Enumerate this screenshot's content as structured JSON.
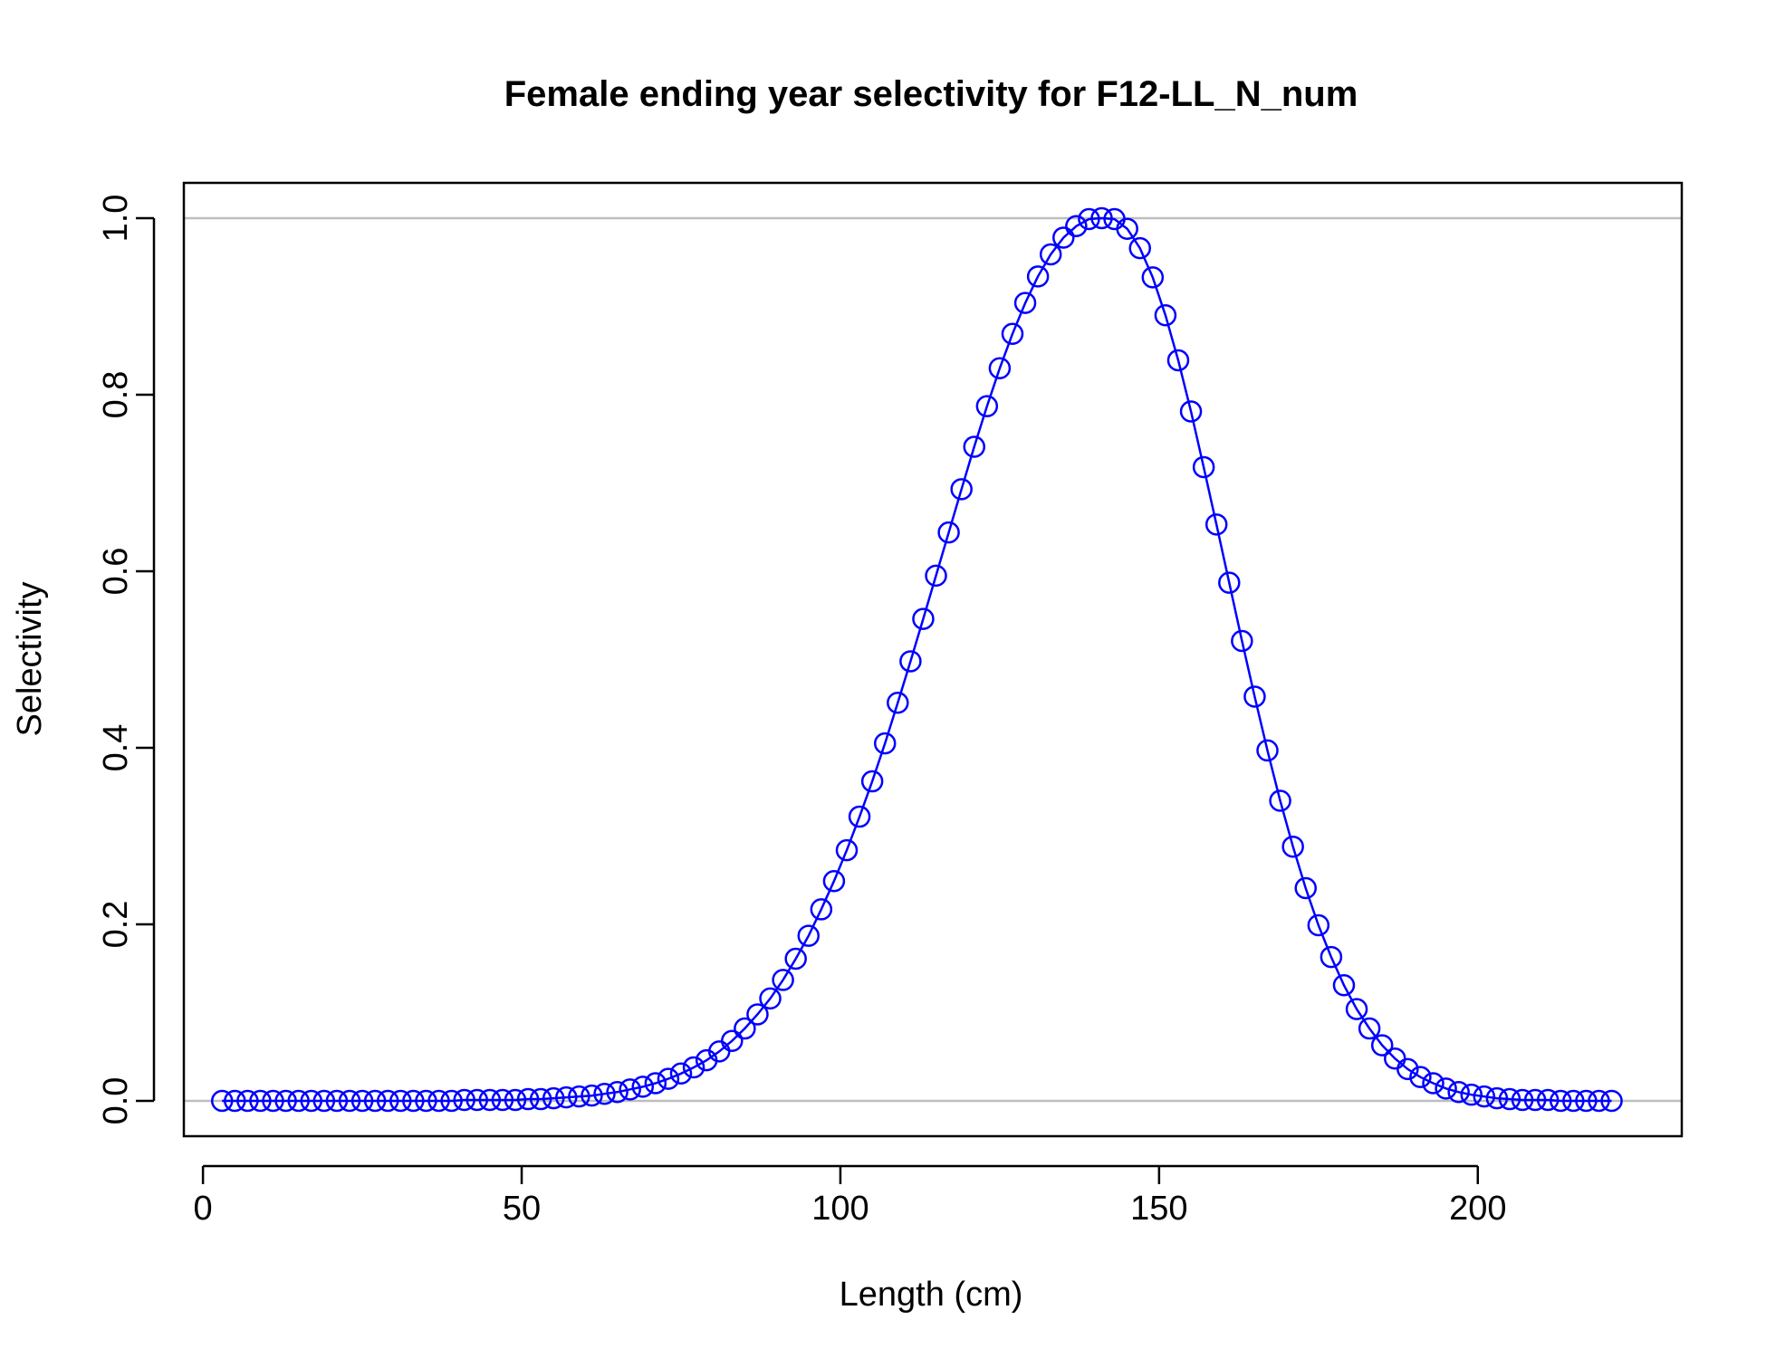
{
  "chart_data": {
    "type": "line",
    "title": "Female ending year selectivity for F12-LL_N_num",
    "xlabel": "Length (cm)",
    "ylabel": "Selectivity",
    "xlim": [
      -3,
      232
    ],
    "ylim": [
      -0.04,
      1.04
    ],
    "x_ticks": [
      0,
      50,
      100,
      150,
      200
    ],
    "y_ticks": [
      0.0,
      0.2,
      0.4,
      0.6,
      0.8,
      1.0
    ],
    "x_tick_labels": [
      "0",
      "50",
      "100",
      "150",
      "200"
    ],
    "y_tick_labels": [
      "0.0",
      "0.2",
      "0.4",
      "0.6",
      "0.8",
      "1.0"
    ],
    "reference_lines_y": [
      0,
      1
    ],
    "colors": {
      "series": "#0000ff",
      "reference": "#bebebe",
      "axis": "#000000"
    },
    "series": [
      {
        "marker": "open-circle",
        "x": [
          3,
          5,
          7,
          9,
          11,
          13,
          15,
          17,
          19,
          21,
          23,
          25,
          27,
          29,
          31,
          33,
          35,
          37,
          39,
          41,
          43,
          45,
          47,
          49,
          51,
          53,
          55,
          57,
          59,
          61,
          63,
          65,
          67,
          69,
          71,
          73,
          75,
          77,
          79,
          81,
          83,
          85,
          87,
          89,
          91,
          93,
          95,
          97,
          99,
          101,
          103,
          105,
          107,
          109,
          111,
          113,
          115,
          117,
          119,
          121,
          123,
          125,
          127,
          129,
          131,
          133,
          135,
          137,
          139,
          141,
          143,
          145,
          147,
          149,
          151,
          153,
          155,
          157,
          159,
          161,
          163,
          165,
          167,
          169,
          171,
          173,
          175,
          177,
          179,
          181,
          183,
          185,
          187,
          189,
          191,
          193,
          195,
          197,
          199,
          201,
          203,
          205,
          207,
          209,
          211,
          213,
          215,
          217,
          219,
          221
        ],
        "y": [
          0.0,
          0.0,
          0.0,
          0.0,
          0.0,
          0.0,
          0.0,
          0.0,
          0.0,
          0.0,
          0.0,
          0.0,
          0.0,
          0.0,
          0.0,
          0.0,
          0.0,
          0.0,
          0.0,
          0.001,
          0.001,
          0.001,
          0.001,
          0.001,
          0.002,
          0.002,
          0.003,
          0.004,
          0.005,
          0.006,
          0.008,
          0.01,
          0.013,
          0.016,
          0.02,
          0.025,
          0.031,
          0.038,
          0.046,
          0.056,
          0.068,
          0.082,
          0.098,
          0.116,
          0.137,
          0.161,
          0.187,
          0.217,
          0.249,
          0.284,
          0.322,
          0.362,
          0.405,
          0.451,
          0.498,
          0.546,
          0.595,
          0.644,
          0.693,
          0.741,
          0.787,
          0.83,
          0.869,
          0.904,
          0.934,
          0.959,
          0.978,
          0.991,
          0.999,
          1.0,
          0.999,
          0.988,
          0.966,
          0.933,
          0.89,
          0.839,
          0.781,
          0.718,
          0.653,
          0.587,
          0.521,
          0.458,
          0.397,
          0.34,
          0.288,
          0.241,
          0.199,
          0.163,
          0.131,
          0.104,
          0.082,
          0.063,
          0.048,
          0.036,
          0.027,
          0.02,
          0.014,
          0.01,
          0.007,
          0.005,
          0.003,
          0.002,
          0.001,
          0.001,
          0.001,
          0.0,
          0.0,
          0.0,
          0.0,
          0.0
        ]
      }
    ]
  }
}
